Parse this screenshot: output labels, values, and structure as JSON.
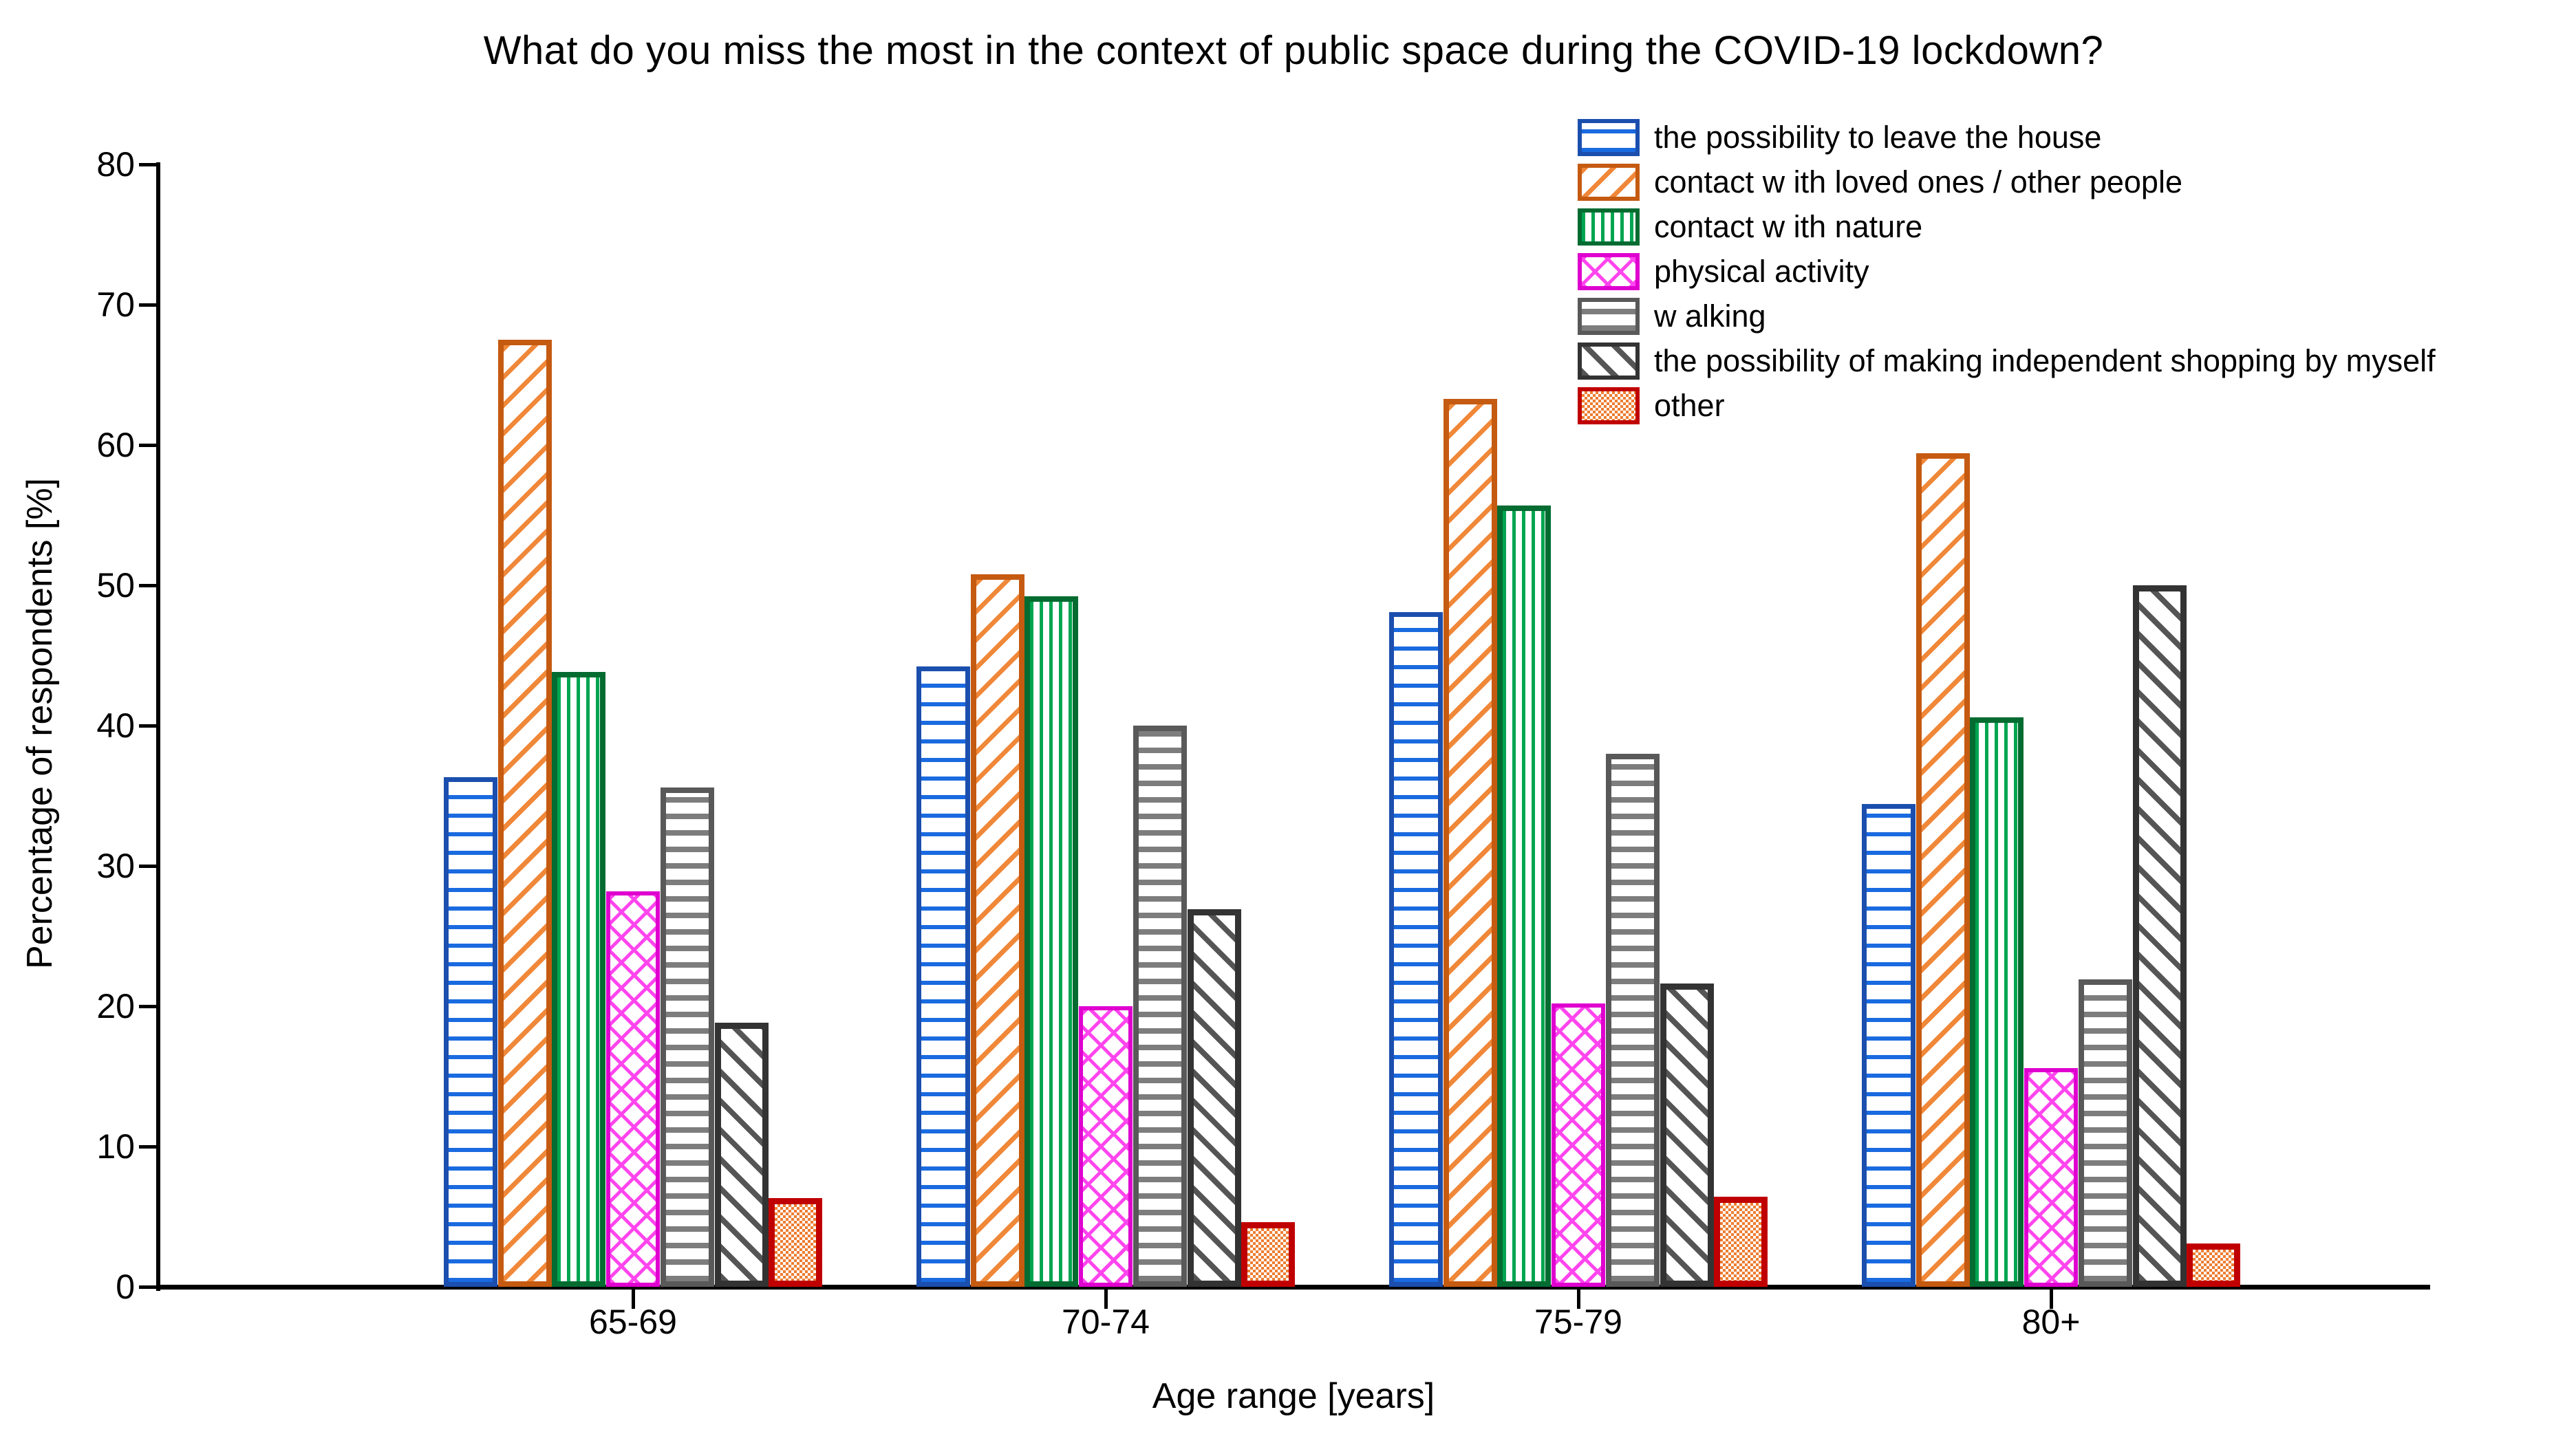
{
  "page": {
    "title": "What do you miss the most in the context of public space during the COVID-19 lockdown?"
  },
  "chart_data": {
    "type": "bar",
    "title": "What do you miss the most in the context of public space during the COVID-19 lockdown?",
    "xlabel": "Age range [years]",
    "ylabel": "Percentage of respondents [%]",
    "categories": [
      "65-69",
      "70-74",
      "75-79",
      "80+"
    ],
    "series": [
      {
        "name": "the possibility to leave the house",
        "pattern": "horizontal-stripes",
        "color": "#1a6ae0",
        "border": "#1b4fae",
        "values": [
          36.3,
          44.2,
          48.1,
          34.4
        ]
      },
      {
        "name": "contact w ith loved ones / other people",
        "pattern": "diagonal-up-stripes",
        "color": "#f0883a",
        "border": "#c55a11",
        "values": [
          67.5,
          50.8,
          63.3,
          59.4
        ]
      },
      {
        "name": "contact w ith nature",
        "pattern": "vertical-stripes",
        "color": "#00a550",
        "border": "#046b31",
        "values": [
          43.8,
          49.2,
          55.7,
          40.6
        ]
      },
      {
        "name": "physical activity",
        "pattern": "crosshatch",
        "color": "#ff45ee",
        "border": "#df00cf",
        "values": [
          28.2,
          20.0,
          20.2,
          15.6
        ]
      },
      {
        "name": "w alking",
        "pattern": "horizontal-stripes",
        "color": "#7d7d7d",
        "border": "#595959",
        "values": [
          35.6,
          40.0,
          38.0,
          21.9
        ]
      },
      {
        "name": "the possibility of making independent shopping by myself",
        "pattern": "diagonal-down-stripes",
        "color": "#555555",
        "border": "#333333",
        "values": [
          18.8,
          26.9,
          21.6,
          50.0
        ]
      },
      {
        "name": "other",
        "pattern": "dot-checker",
        "color": "#ed7d31",
        "border": "#c00000",
        "values": [
          6.3,
          4.6,
          6.4,
          3.1
        ]
      }
    ],
    "ylim": [
      0,
      80
    ],
    "yticks": [
      0,
      10,
      20,
      30,
      40,
      50,
      60,
      70,
      80
    ],
    "grid": false,
    "legend_position": "top-right"
  }
}
